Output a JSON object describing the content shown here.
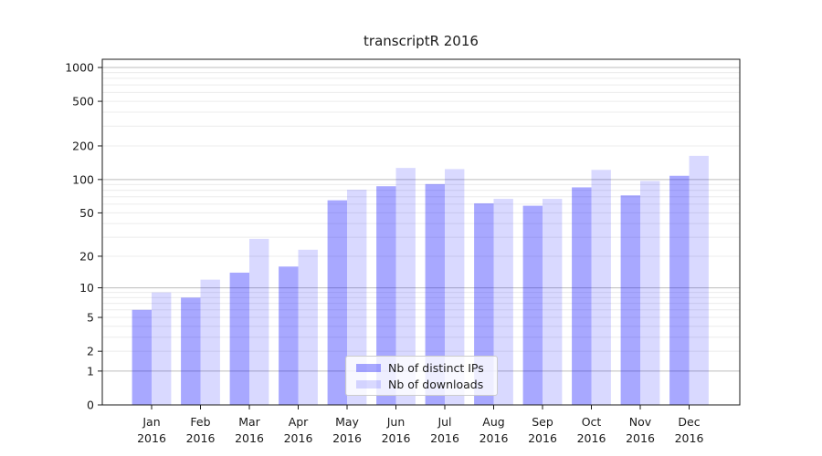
{
  "figure": {
    "title": "transcriptR 2016"
  },
  "chart_data": {
    "type": "bar",
    "title": "transcriptR 2016",
    "categories": [
      "Jan",
      "Feb",
      "Mar",
      "Apr",
      "May",
      "Jun",
      "Jul",
      "Aug",
      "Sep",
      "Oct",
      "Nov",
      "Dec"
    ],
    "category_year": "2016",
    "series": [
      {
        "name": "Nb of distinct IPs",
        "color": "rgba(0,0,255,0.34)",
        "values": [
          6,
          8,
          14,
          16,
          65,
          87,
          91,
          61,
          58,
          85,
          72,
          108
        ]
      },
      {
        "name": "Nb of downloads",
        "color": "rgba(0,0,255,0.15)",
        "values": [
          9,
          12,
          29,
          23,
          81,
          127,
          124,
          67,
          67,
          122,
          97,
          163
        ]
      }
    ],
    "xlabel": "",
    "ylabel": "",
    "yscale": "log1p",
    "y_ticks": [
      0,
      1,
      2,
      5,
      10,
      20,
      50,
      100,
      200,
      500,
      1000
    ],
    "ylim": [
      0,
      1180
    ],
    "grid": true,
    "legend_position": "lower-center",
    "colors": {
      "major_grid": "#bdbdbd",
      "minor_grid": "#ececec",
      "axis": "#1a1a1a",
      "background": "#ffffff"
    }
  }
}
